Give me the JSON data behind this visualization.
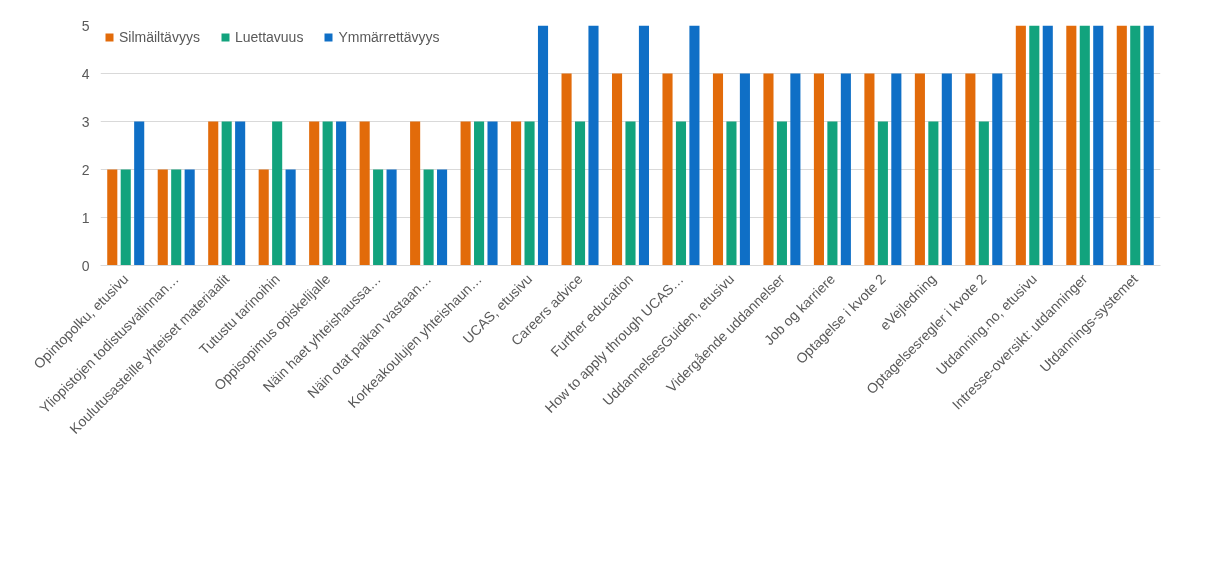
{
  "chart_data": {
    "type": "bar",
    "categories": [
      "Opintopolku, etusivu",
      "Yliopistojen todistusvalinnan…",
      "Koulutusasteille yhteiset materiaalit",
      "Tutustu tarinoihin",
      "Oppisopimus opiskelijalle",
      "Näin haet yhteishaussa…",
      "Näin otat paikan vastaan…",
      "Korkeakoulujen yhteishaun…",
      "UCAS, etusivu",
      "Careers advice",
      "Further education",
      "How to apply through UCAS…",
      "UddannelsesGuiden, etusivu",
      "Vidergående uddannelser",
      "Job og karriere",
      "Optagelse i kvote 2",
      "eVejledning",
      "Optagelsesregler i kvote 2",
      "Utdanning.no, etusivu",
      "Intresse-oversikt: utdanninger",
      "Utdannings-systemet"
    ],
    "series": [
      {
        "name": "Silmäiltävyys",
        "color": "#e26b0a",
        "values": [
          2,
          2,
          3,
          2,
          3,
          3,
          3,
          3,
          3,
          4,
          4,
          4,
          4,
          4,
          4,
          4,
          4,
          4,
          5,
          5,
          5
        ]
      },
      {
        "name": "Luettavuus",
        "color": "#12a37d",
        "values": [
          2,
          2,
          3,
          3,
          3,
          2,
          2,
          3,
          3,
          3,
          3,
          3,
          3,
          3,
          3,
          3,
          3,
          3,
          5,
          5,
          5
        ]
      },
      {
        "name": "Ymmärrettävyys",
        "color": "#0f6fc6",
        "values": [
          3,
          2,
          3,
          2,
          3,
          2,
          2,
          3,
          5,
          5,
          5,
          5,
          4,
          4,
          4,
          4,
          4,
          4,
          5,
          5,
          5
        ]
      }
    ],
    "ylim": [
      0,
      5
    ],
    "yticks": [
      0,
      1,
      2,
      3,
      4,
      5
    ],
    "grid": "y",
    "legend": "top left"
  }
}
